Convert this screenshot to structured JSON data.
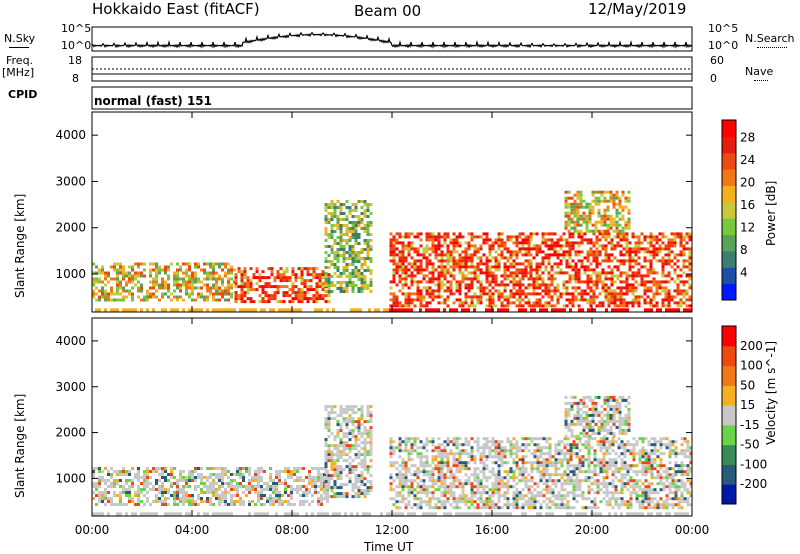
{
  "header": {
    "station": "Hokkaido East (fitACF)",
    "beam": "Beam 00",
    "date": "12/May/2019"
  },
  "top_panels": {
    "nsky_label": "N.Sky",
    "nsky_ticks": [
      "10^5",
      "10^0"
    ],
    "nsearch_label": "N.Search",
    "nsearch_ticks": [
      "10^5",
      "10^0"
    ],
    "freq_label": "Freq.",
    "freq_unit": "[MHz]",
    "freq_ticks": [
      "18",
      "8"
    ],
    "nave_label": "Nave",
    "nave_ticks": [
      "60",
      "0"
    ],
    "cpid_label": "CPID",
    "cpid_text": "normal (fast) 151"
  },
  "chart_data": [
    {
      "type": "heatmap",
      "name": "power",
      "ylabel": "Slant Range [km]",
      "yticks": [
        "1000",
        "2000",
        "3000",
        "4000"
      ],
      "ytick_values": [
        1000,
        2000,
        3000,
        4000
      ],
      "ylim": [
        180,
        4500
      ],
      "xlim": [
        0,
        24
      ],
      "colorbar_label": "Power [dB]",
      "colorbar_ticks": [
        "4",
        "8",
        "12",
        "16",
        "20",
        "24",
        "28"
      ],
      "colorbar_colors": [
        "#0018ff",
        "#1c4fa6",
        "#3c7f6e",
        "#5aa15c",
        "#78c83f",
        "#c9c83a",
        "#f5b020",
        "#f07818",
        "#ec4a12",
        "#e61c0c",
        "#ff0000"
      ],
      "bands": [
        {
          "t0": 0.0,
          "t1": 5.7,
          "r0": 400,
          "r1": 1250,
          "intensity": "mid"
        },
        {
          "t0": 5.7,
          "t1": 9.5,
          "r0": 400,
          "r1": 1150,
          "intensity": "high"
        },
        {
          "t0": 9.3,
          "t1": 11.2,
          "r0": 600,
          "r1": 2600,
          "intensity": "low"
        },
        {
          "t0": 11.9,
          "t1": 17.5,
          "r0": 300,
          "r1": 1900,
          "intensity": "high"
        },
        {
          "t0": 17.5,
          "t1": 24.0,
          "r0": 300,
          "r1": 1900,
          "intensity": "high"
        },
        {
          "t0": 18.9,
          "t1": 21.5,
          "r0": 1900,
          "r1": 2800,
          "intensity": "mid"
        }
      ]
    },
    {
      "type": "heatmap",
      "name": "velocity",
      "ylabel": "Slant Range [km]",
      "yticks": [
        "1000",
        "2000",
        "3000",
        "4000"
      ],
      "ytick_values": [
        1000,
        2000,
        3000,
        4000
      ],
      "ylim": [
        180,
        4500
      ],
      "xlim": [
        0,
        24
      ],
      "colorbar_label": "Velocity [m s^-1]",
      "colorbar_ticks": [
        "200",
        "100",
        "50",
        "15",
        "-15",
        "-50",
        "-100",
        "-200"
      ],
      "colorbar_colors": [
        "#0018a8",
        "#2a5a7a",
        "#3a8a5a",
        "#6cd24a",
        "#c8c8c8",
        "#f5b020",
        "#f07818",
        "#ec4a12",
        "#ff0000"
      ],
      "bands": [
        {
          "t0": 0.0,
          "t1": 9.5,
          "r0": 400,
          "r1": 1250,
          "intensity": "grey"
        },
        {
          "t0": 9.3,
          "t1": 11.2,
          "r0": 600,
          "r1": 2600,
          "intensity": "grey"
        },
        {
          "t0": 11.9,
          "t1": 24.0,
          "r0": 300,
          "r1": 1900,
          "intensity": "grey"
        },
        {
          "t0": 18.9,
          "t1": 21.5,
          "r0": 1900,
          "r1": 2800,
          "intensity": "grey"
        }
      ]
    }
  ],
  "xaxis": {
    "label": "Time UT",
    "ticks": [
      "00:00",
      "04:00",
      "08:00",
      "12:00",
      "16:00",
      "20:00",
      "00:00"
    ],
    "tick_values": [
      0,
      4,
      8,
      12,
      16,
      20,
      24
    ]
  }
}
